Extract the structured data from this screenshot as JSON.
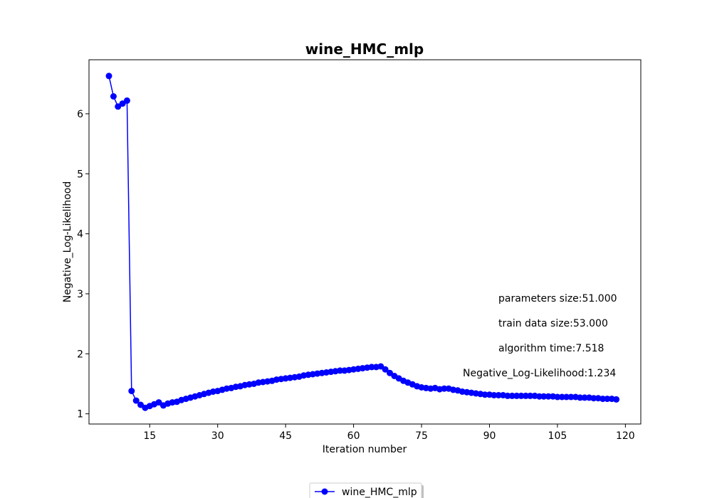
{
  "chart_data": {
    "type": "line",
    "title": "wine_HMC_mlp",
    "xlabel": "Iteration number",
    "ylabel": "Negative_Log-Likelihood",
    "xlim": [
      1.6,
      123.4
    ],
    "ylim": [
      0.83,
      6.9
    ],
    "x_ticks": [
      15,
      30,
      45,
      60,
      75,
      90,
      105,
      120
    ],
    "y_ticks": [
      1,
      2,
      3,
      4,
      5,
      6
    ],
    "grid": false,
    "legend_position": "bottom-center",
    "series": [
      {
        "name": "wine_HMC_mlp",
        "color": "#0000ff",
        "marker": "circle",
        "x": [
          6,
          7,
          8,
          9,
          10,
          11,
          12,
          13,
          14,
          15,
          16,
          17,
          18,
          19,
          20,
          21,
          22,
          23,
          24,
          25,
          26,
          27,
          28,
          29,
          30,
          31,
          32,
          33,
          34,
          35,
          36,
          37,
          38,
          39,
          40,
          41,
          42,
          43,
          44,
          45,
          46,
          47,
          48,
          49,
          50,
          51,
          52,
          53,
          54,
          55,
          56,
          57,
          58,
          59,
          60,
          61,
          62,
          63,
          64,
          65,
          66,
          67,
          68,
          69,
          70,
          71,
          72,
          73,
          74,
          75,
          76,
          77,
          78,
          79,
          80,
          81,
          82,
          83,
          84,
          85,
          86,
          87,
          88,
          89,
          90,
          91,
          92,
          93,
          94,
          95,
          96,
          97,
          98,
          99,
          100,
          101,
          102,
          103,
          104,
          105,
          106,
          107,
          108,
          109,
          110,
          111,
          112,
          113,
          114,
          115,
          116,
          117,
          118
        ],
        "y": [
          6.63,
          6.29,
          6.12,
          6.17,
          6.22,
          1.38,
          1.22,
          1.15,
          1.1,
          1.13,
          1.16,
          1.19,
          1.14,
          1.17,
          1.19,
          1.2,
          1.23,
          1.25,
          1.27,
          1.29,
          1.31,
          1.33,
          1.35,
          1.37,
          1.38,
          1.4,
          1.42,
          1.43,
          1.45,
          1.46,
          1.48,
          1.49,
          1.5,
          1.52,
          1.53,
          1.54,
          1.55,
          1.57,
          1.58,
          1.59,
          1.6,
          1.61,
          1.62,
          1.64,
          1.65,
          1.66,
          1.67,
          1.68,
          1.69,
          1.7,
          1.71,
          1.72,
          1.72,
          1.73,
          1.74,
          1.75,
          1.76,
          1.77,
          1.78,
          1.78,
          1.79,
          1.74,
          1.68,
          1.63,
          1.59,
          1.55,
          1.52,
          1.49,
          1.46,
          1.44,
          1.43,
          1.42,
          1.43,
          1.41,
          1.42,
          1.42,
          1.4,
          1.39,
          1.37,
          1.36,
          1.35,
          1.34,
          1.33,
          1.32,
          1.32,
          1.31,
          1.31,
          1.31,
          1.3,
          1.3,
          1.3,
          1.3,
          1.3,
          1.3,
          1.3,
          1.29,
          1.29,
          1.29,
          1.29,
          1.28,
          1.28,
          1.28,
          1.28,
          1.28,
          1.27,
          1.27,
          1.27,
          1.26,
          1.26,
          1.25,
          1.25,
          1.25,
          1.24
        ]
      }
    ],
    "annotations": [
      "parameters size:51.000",
      "train data size:53.000",
      "algorithm time:7.518",
      "Negative_Log-Likelihood:1.234"
    ]
  }
}
